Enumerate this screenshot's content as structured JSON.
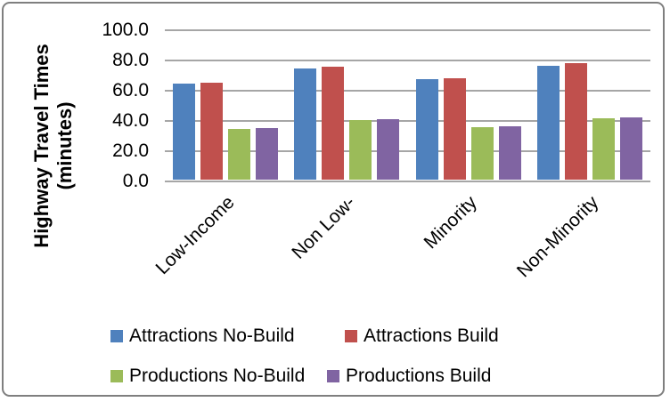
{
  "chart_data": {
    "type": "bar",
    "title": "",
    "ylabel_line1": "Highway Travel Times",
    "ylabel_line2": "(minutes)",
    "categories": [
      "Low-Income",
      "Non Low-",
      "Minority",
      "Non-Minority"
    ],
    "series": [
      {
        "name": "Attractions No-Build",
        "color": "#4F81BD",
        "values": [
          64.5,
          74.5,
          67.5,
          76.5
        ]
      },
      {
        "name": "Attractions Build",
        "color": "#C0504D",
        "values": [
          65.5,
          76.0,
          68.5,
          78.0
        ]
      },
      {
        "name": "Productions No-Build",
        "color": "#9BBB59",
        "values": [
          35.0,
          40.5,
          36.0,
          41.5
        ]
      },
      {
        "name": "Productions Build",
        "color": "#8064A2",
        "values": [
          35.5,
          41.0,
          36.5,
          42.5
        ]
      }
    ],
    "y_axis": {
      "min": 0,
      "max": 100,
      "step": 20,
      "tick_labels": [
        "100.0",
        "80.0",
        "60.0",
        "40.0",
        "20.0",
        "0.0"
      ]
    },
    "xlabel": "",
    "grid": true,
    "legend_position": "bottom",
    "legend_rows": [
      [
        "Attractions No-Build",
        "Attractions Build"
      ],
      [
        "Productions No-Build",
        "Productions Build"
      ]
    ],
    "colors": {
      "gridline": "#A6A6A6",
      "axis_line": "#A6A6A6",
      "border": "#7F7F7F",
      "text": "#000000"
    }
  }
}
